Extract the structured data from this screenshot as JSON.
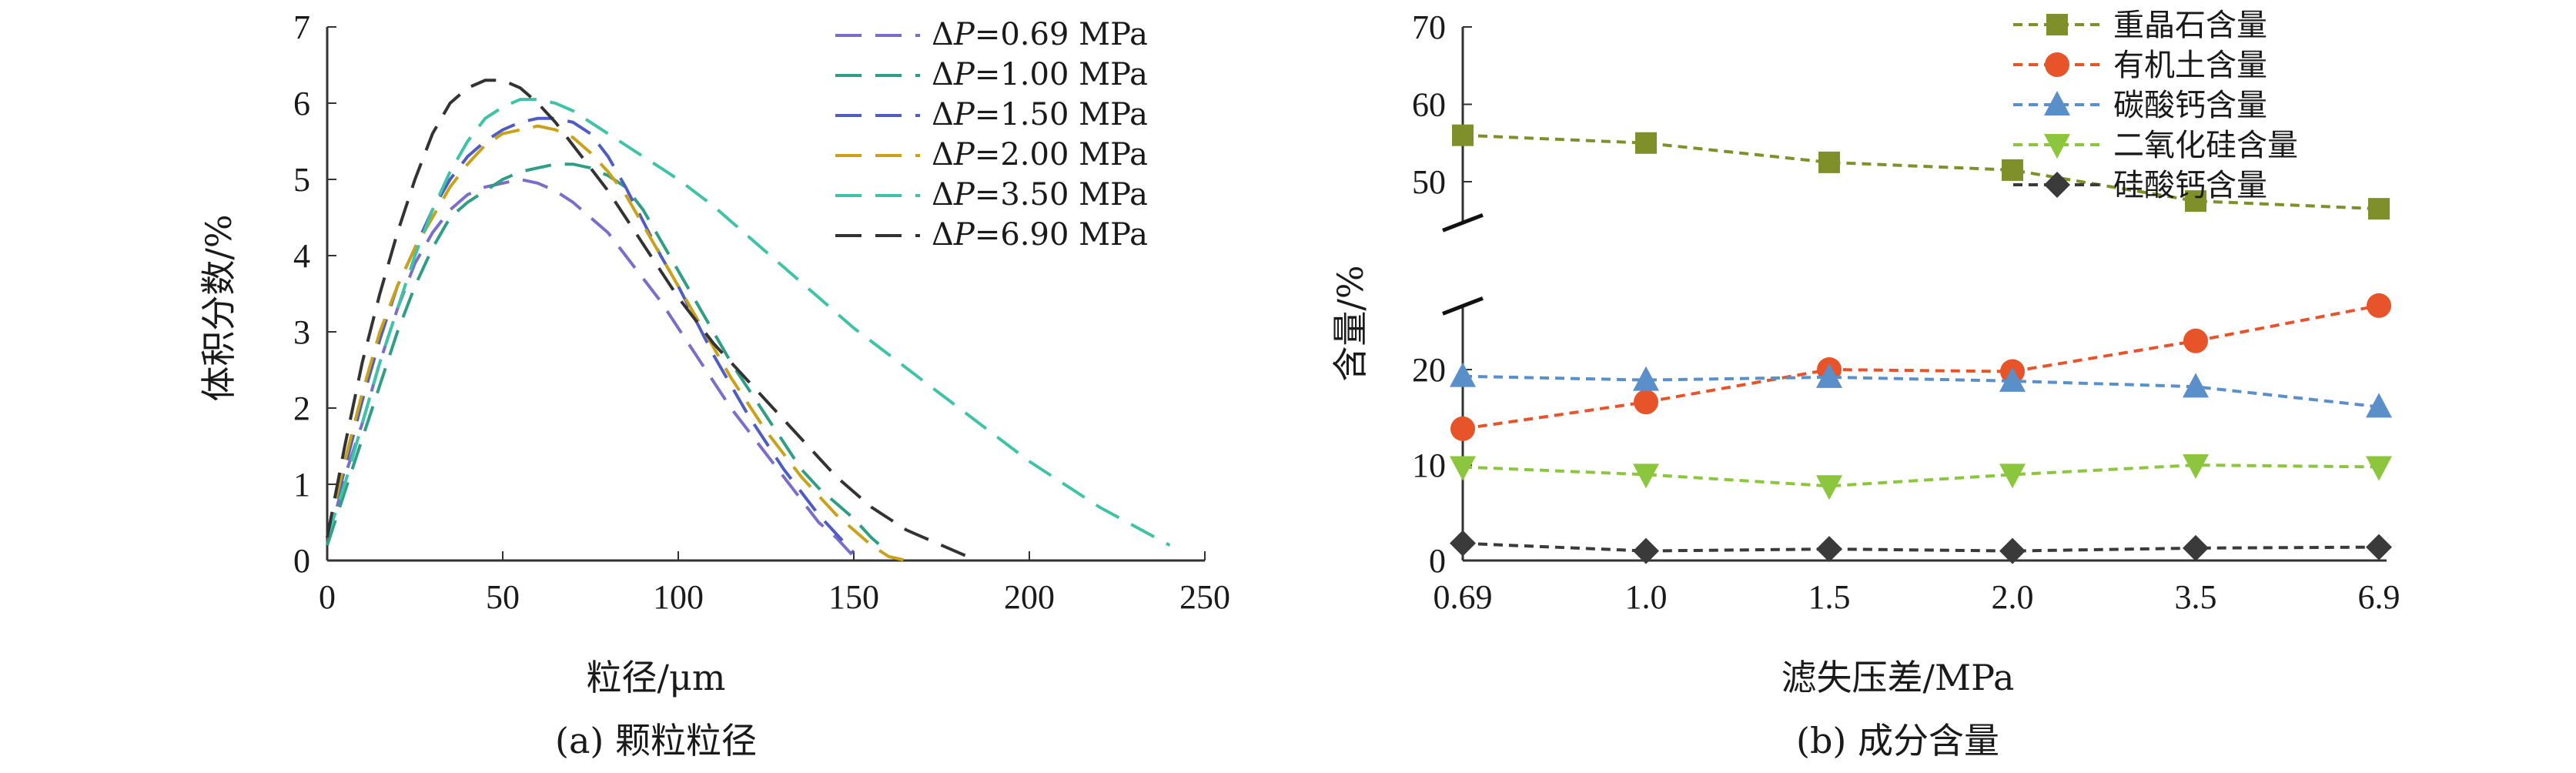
{
  "chart_data": [
    {
      "type": "line",
      "xlabel": "粒径/μm",
      "ylabel": "体积分数/%",
      "caption": "(a) 颗粒粒径",
      "xlim": [
        0,
        250
      ],
      "ylim": [
        0,
        7
      ],
      "xticks": [
        "0",
        "50",
        "100",
        "150",
        "200",
        "250"
      ],
      "yticks": [
        "0",
        "1",
        "2",
        "3",
        "4",
        "5",
        "6",
        "7"
      ],
      "legend_position": "top-right",
      "legend_prefix": "ΔP",
      "series": [
        {
          "name": "=0.69 MPa",
          "color": "#7b6ec8",
          "x": [
            0,
            5,
            10,
            15,
            20,
            25,
            30,
            35,
            40,
            45,
            50,
            55,
            60,
            65,
            70,
            75,
            80,
            85,
            90,
            95,
            100,
            105,
            110,
            115,
            120,
            125,
            130,
            135,
            140,
            145,
            150
          ],
          "y": [
            0.2,
            1.1,
            1.8,
            2.6,
            3.3,
            3.9,
            4.3,
            4.6,
            4.8,
            4.9,
            4.95,
            5.0,
            4.95,
            4.85,
            4.7,
            4.5,
            4.3,
            4.0,
            3.7,
            3.4,
            3.05,
            2.7,
            2.35,
            2.0,
            1.7,
            1.4,
            1.1,
            0.8,
            0.5,
            0.3,
            0.05
          ]
        },
        {
          "name": "=1.00 MPa",
          "color": "#2e9e84",
          "x": [
            0,
            5,
            10,
            15,
            20,
            25,
            30,
            35,
            40,
            45,
            50,
            55,
            60,
            65,
            70,
            75,
            80,
            85,
            90,
            95,
            100,
            105,
            110,
            115,
            120,
            125,
            130,
            135,
            140,
            145,
            150,
            155,
            160
          ],
          "y": [
            0.2,
            0.9,
            1.6,
            2.3,
            3.0,
            3.6,
            4.1,
            4.5,
            4.7,
            4.85,
            5.0,
            5.1,
            5.15,
            5.2,
            5.2,
            5.15,
            5.05,
            4.9,
            4.6,
            4.2,
            3.8,
            3.4,
            3.0,
            2.6,
            2.25,
            1.9,
            1.55,
            1.2,
            0.95,
            0.75,
            0.55,
            0.3,
            0.1
          ]
        },
        {
          "name": "=1.50 MPa",
          "color": "#4e5cc4",
          "x": [
            0,
            5,
            10,
            15,
            20,
            25,
            30,
            35,
            40,
            45,
            50,
            55,
            60,
            65,
            70,
            75,
            80,
            85,
            90,
            95,
            100,
            105,
            110,
            115,
            120,
            125,
            130,
            135,
            140,
            145,
            150
          ],
          "y": [
            0.3,
            1.2,
            2.1,
            2.9,
            3.6,
            4.1,
            4.6,
            5.0,
            5.3,
            5.5,
            5.65,
            5.75,
            5.8,
            5.8,
            5.75,
            5.6,
            5.3,
            4.9,
            4.45,
            4.0,
            3.6,
            3.15,
            2.7,
            2.3,
            1.9,
            1.55,
            1.2,
            0.9,
            0.6,
            0.35,
            0.1
          ]
        },
        {
          "name": "=2.00 MPa",
          "color": "#c9a21a",
          "x": [
            0,
            5,
            10,
            15,
            20,
            25,
            30,
            35,
            40,
            45,
            50,
            55,
            60,
            65,
            70,
            75,
            80,
            85,
            90,
            95,
            100,
            105,
            110,
            115,
            120,
            125,
            130,
            135,
            140,
            145,
            150,
            155,
            160,
            165
          ],
          "y": [
            0.3,
            1.3,
            2.2,
            3.0,
            3.6,
            4.1,
            4.5,
            4.9,
            5.2,
            5.45,
            5.6,
            5.65,
            5.7,
            5.65,
            5.55,
            5.35,
            5.1,
            4.8,
            4.4,
            4.0,
            3.6,
            3.2,
            2.8,
            2.4,
            2.05,
            1.7,
            1.4,
            1.1,
            0.85,
            0.6,
            0.4,
            0.2,
            0.05,
            0.0
          ]
        },
        {
          "name": "=3.50 MPa",
          "color": "#3fc3a6",
          "x": [
            0,
            5,
            10,
            15,
            20,
            25,
            30,
            35,
            40,
            45,
            50,
            55,
            60,
            65,
            70,
            75,
            80,
            85,
            90,
            95,
            100,
            110,
            120,
            130,
            140,
            150,
            160,
            170,
            180,
            190,
            200,
            210,
            220,
            230,
            240
          ],
          "y": [
            0.3,
            1.0,
            1.8,
            2.6,
            3.3,
            4.0,
            4.6,
            5.1,
            5.5,
            5.8,
            5.95,
            6.05,
            6.05,
            6.0,
            5.9,
            5.75,
            5.6,
            5.45,
            5.3,
            5.15,
            5.0,
            4.65,
            4.25,
            3.85,
            3.45,
            3.05,
            2.7,
            2.35,
            2.0,
            1.65,
            1.3,
            1.0,
            0.7,
            0.45,
            0.2
          ]
        },
        {
          "name": "=6.90 MPa",
          "color": "#333333",
          "x": [
            0,
            5,
            10,
            15,
            20,
            25,
            30,
            35,
            40,
            45,
            50,
            55,
            60,
            65,
            70,
            75,
            80,
            85,
            90,
            95,
            100,
            105,
            110,
            115,
            120,
            125,
            130,
            135,
            140,
            145,
            150,
            155,
            160,
            165,
            170,
            175,
            180,
            185
          ],
          "y": [
            0.3,
            1.5,
            2.6,
            3.5,
            4.3,
            5.0,
            5.6,
            6.0,
            6.2,
            6.3,
            6.3,
            6.2,
            6.0,
            5.75,
            5.45,
            5.15,
            4.85,
            4.5,
            4.15,
            3.8,
            3.45,
            3.15,
            2.85,
            2.6,
            2.35,
            2.1,
            1.85,
            1.6,
            1.35,
            1.1,
            0.9,
            0.7,
            0.55,
            0.4,
            0.3,
            0.2,
            0.1,
            0.0
          ]
        }
      ]
    },
    {
      "type": "line",
      "xlabel": "滤失压差/MPa",
      "ylabel": "含量/%",
      "caption": "(b) 成分含量",
      "categories": [
        "0.69",
        "1.0",
        "1.5",
        "2.0",
        "3.5",
        "6.9"
      ],
      "yticks": [
        "0",
        "10",
        "20",
        "50",
        "60",
        "70"
      ],
      "axis_break": [
        25,
        45
      ],
      "ylim": [
        0,
        70
      ],
      "legend_position": "top-right",
      "series": [
        {
          "name": "重晶石含量",
          "color": "#7f8f2a",
          "marker": "square",
          "values": [
            56.0,
            55.0,
            52.5,
            51.5,
            47.5,
            46.5
          ]
        },
        {
          "name": "有机土含量",
          "color": "#e8542a",
          "marker": "circle",
          "values": [
            13.8,
            16.6,
            20.0,
            19.8,
            23.0,
            26.7
          ]
        },
        {
          "name": "碳酸钙含量",
          "color": "#5b8fc9",
          "marker": "triangle-up",
          "values": [
            19.3,
            18.9,
            19.2,
            18.8,
            18.2,
            16.1
          ]
        },
        {
          "name": "二氧化硅含量",
          "color": "#8cc63f",
          "marker": "triangle-down",
          "values": [
            9.8,
            9.0,
            7.8,
            9.0,
            10.0,
            9.8
          ]
        },
        {
          "name": "硅酸钙含量",
          "color": "#3a3a3a",
          "marker": "diamond",
          "values": [
            1.8,
            1.0,
            1.2,
            1.0,
            1.3,
            1.4
          ]
        }
      ]
    }
  ]
}
